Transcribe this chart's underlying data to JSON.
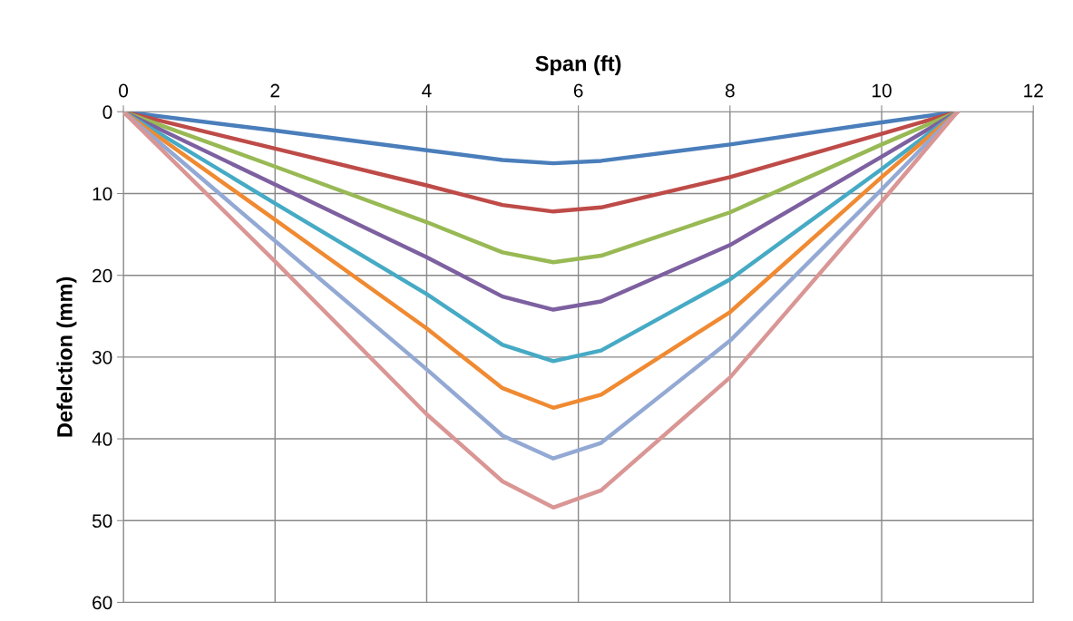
{
  "chart_data": {
    "type": "line",
    "xlabel": "Span (ft)",
    "ylabel": "Defelction (mm)",
    "xlim": [
      0,
      12
    ],
    "xticks": [
      0,
      2,
      4,
      6,
      8,
      10,
      12
    ],
    "ylim": [
      60,
      0
    ],
    "yticks": [
      0,
      10,
      20,
      30,
      40,
      50,
      60
    ],
    "grid": true,
    "marker": "none",
    "line_style": "solid",
    "x": [
      0,
      2,
      4,
      5,
      5.67,
      6.3,
      8,
      10,
      11
    ],
    "series": [
      {
        "color": "#4a7ebb",
        "values": [
          0,
          2.3,
          4.7,
          5.9,
          6.3,
          6.0,
          4.0,
          1.3,
          0
        ]
      },
      {
        "color": "#be4b48",
        "values": [
          0,
          4.5,
          9.0,
          11.4,
          12.2,
          11.7,
          8.0,
          2.7,
          0
        ]
      },
      {
        "color": "#98b954",
        "values": [
          0,
          6.7,
          13.5,
          17.2,
          18.4,
          17.6,
          12.3,
          4.0,
          0
        ]
      },
      {
        "color": "#7d60a0",
        "values": [
          0,
          8.9,
          17.8,
          22.6,
          24.2,
          23.2,
          16.3,
          5.5,
          0
        ]
      },
      {
        "color": "#46aac5",
        "values": [
          0,
          11.2,
          22.3,
          28.5,
          30.5,
          29.2,
          20.5,
          7.0,
          0
        ]
      },
      {
        "color": "#f08a32",
        "values": [
          0,
          13.2,
          26.5,
          33.8,
          36.2,
          34.6,
          24.5,
          8.0,
          0
        ]
      },
      {
        "color": "#93a9d4",
        "values": [
          0,
          15.8,
          31.5,
          39.6,
          42.4,
          40.5,
          28.0,
          9.5,
          0
        ]
      },
      {
        "color": "#d99694",
        "values": [
          0,
          18.3,
          37.0,
          45.2,
          48.4,
          46.3,
          32.5,
          11.0,
          0
        ]
      }
    ]
  }
}
